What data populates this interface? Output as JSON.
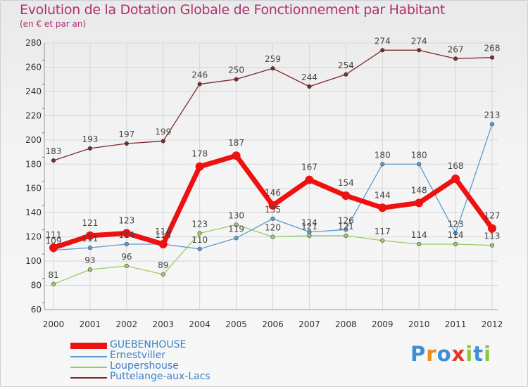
{
  "title": "Evolution de la Dotation Globale de Fonctionnement par Habitant",
  "subtitle": "(en € et par an)",
  "logo": {
    "text": "Proxiti",
    "letters": [
      "P",
      "r",
      "o",
      "x",
      "i",
      "t",
      "i"
    ],
    "colors": [
      "#3b8fd4",
      "#f08a1c",
      "#3b8fd4",
      "#e2342b",
      "#8cc63f",
      "#3b8fd4",
      "#8cc63f"
    ]
  },
  "chart_data": {
    "type": "line",
    "title": "Evolution de la Dotation Globale de Fonctionnement par Habitant",
    "subtitle": "(en € et par an)",
    "xlabel": "",
    "ylabel": "",
    "x": [
      "2000",
      "2001",
      "2002",
      "2003",
      "2004",
      "2005",
      "2006",
      "2007",
      "2008",
      "2009",
      "2010",
      "2011",
      "2012"
    ],
    "ylim": [
      60,
      280
    ],
    "yticks": [
      60,
      80,
      100,
      120,
      140,
      160,
      180,
      200,
      220,
      240,
      260,
      280
    ],
    "grid": true,
    "series": [
      {
        "name": "GUEBENHOUSE",
        "color": "#ee1111",
        "width": 7,
        "marker": 6,
        "values": [
          111,
          121,
          123,
          114,
          178,
          187,
          146,
          167,
          154,
          144,
          148,
          168,
          127
        ],
        "labels": [
          "111",
          "121",
          "123",
          "114",
          "178",
          "187",
          "146",
          "167",
          "154",
          "144",
          "148",
          "168",
          "127"
        ]
      },
      {
        "name": "Ernestviller",
        "color": "#5b9bd0",
        "width": 1.3,
        "marker": 2.8,
        "values": [
          109,
          111,
          114,
          114,
          110,
          119,
          135,
          124,
          126,
          180,
          180,
          123,
          213
        ],
        "labels": [
          "109",
          "111",
          "114",
          "114",
          "110",
          "119",
          "135",
          "124",
          "126",
          "180",
          "180",
          "123",
          "213"
        ]
      },
      {
        "name": "Loupershouse",
        "color": "#99cc66",
        "width": 1.3,
        "marker": 2.8,
        "values": [
          81,
          93,
          96,
          89,
          123,
          130,
          120,
          121,
          121,
          117,
          114,
          114,
          113
        ],
        "labels": [
          "81",
          "93",
          "96",
          "89",
          "123",
          "130",
          "120",
          "121",
          "121",
          "117",
          "114",
          "114",
          "113"
        ]
      },
      {
        "name": "Puttelange-aux-Lacs",
        "color": "#7a2a2a",
        "width": 1.3,
        "marker": 2.8,
        "values": [
          183,
          193,
          197,
          199,
          246,
          250,
          259,
          244,
          254,
          274,
          274,
          267,
          268
        ],
        "labels": [
          "183",
          "193",
          "197",
          "199",
          "246",
          "250",
          "259",
          "244",
          "254",
          "274",
          "274",
          "267",
          "268"
        ]
      }
    ],
    "legend": "bottom-left"
  }
}
